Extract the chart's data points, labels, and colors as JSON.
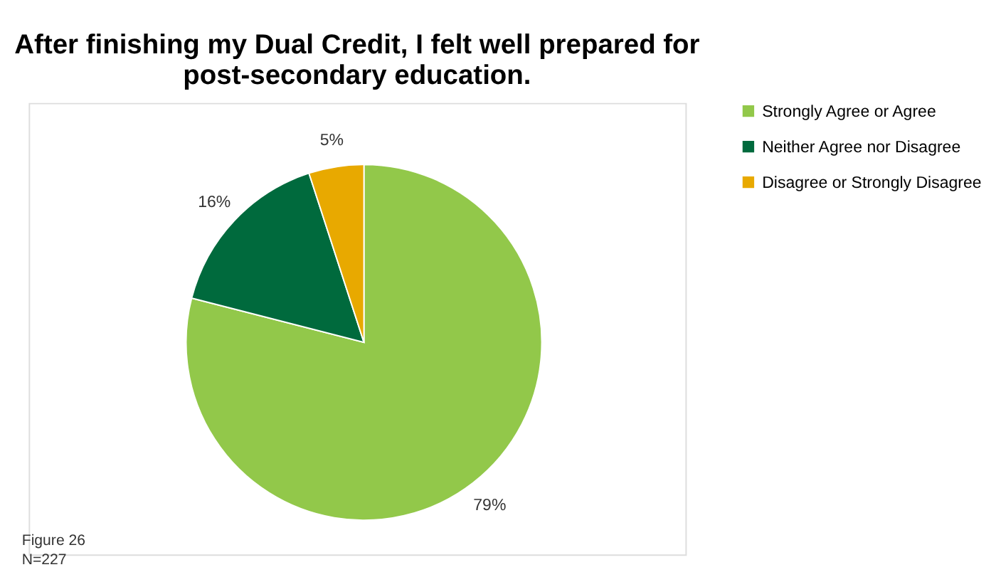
{
  "chart_data": {
    "type": "pie",
    "title": "After finishing my Dual Credit, I felt well prepared for post-secondary education.",
    "categories": [
      "Strongly Agree or Agree",
      "Neither Agree nor Disagree",
      "Disagree or Strongly Disagree"
    ],
    "values": [
      79,
      16,
      5
    ],
    "colors": [
      "#92c84a",
      "#006a3d",
      "#e8a900"
    ],
    "value_labels": [
      "79%",
      "16%",
      "5%"
    ],
    "legend": "right",
    "annotations": [
      "Figure 26",
      "N=227"
    ]
  }
}
